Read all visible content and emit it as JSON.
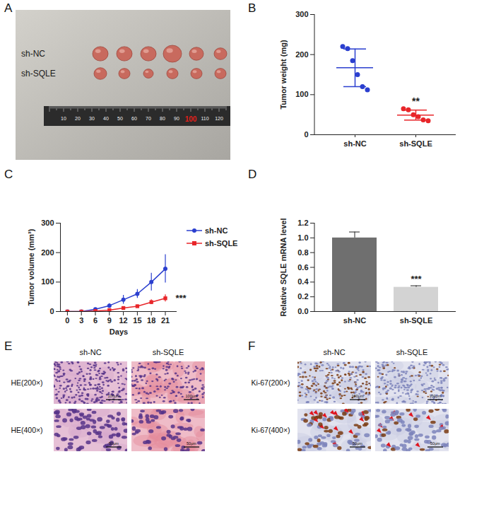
{
  "chart_data": [
    {
      "panel": "B",
      "type": "scatter",
      "categories": [
        "sh-NC",
        "sh-SQLE"
      ],
      "values": [
        [
          220,
          215,
          185,
          150,
          120,
          112
        ],
        [
          65,
          62,
          50,
          45,
          37,
          35
        ]
      ],
      "mean": [
        167,
        49
      ],
      "sd": [
        47,
        12.5
      ],
      "colors": [
        "#2b3fcf",
        "#e8262a"
      ],
      "ylabel": "Tumor weight (mg)",
      "ylim": [
        0,
        300
      ],
      "yticks": [
        0,
        100,
        200,
        300
      ],
      "annotations": [
        {
          "category": "sh-SQLE",
          "text": "**"
        }
      ]
    },
    {
      "panel": "C",
      "type": "line",
      "x": [
        0,
        3,
        6,
        9,
        12,
        15,
        18,
        21
      ],
      "series": [
        {
          "name": "sh-NC",
          "color": "#2b3fcf",
          "marker": "circle",
          "values": [
            0,
            0,
            8,
            20,
            40,
            60,
            100,
            145
          ],
          "errors": [
            0,
            0,
            3,
            7,
            15,
            15,
            30,
            48
          ]
        },
        {
          "name": "sh-SQLE",
          "color": "#e8262a",
          "marker": "square",
          "values": [
            0,
            0,
            2,
            5,
            12,
            18,
            32,
            45
          ],
          "errors": [
            0,
            0,
            1,
            2,
            4,
            5,
            8,
            12
          ]
        }
      ],
      "xlabel": "Days",
      "ylabel": "Tumor volume (mm³)",
      "xlim": [
        -1.5,
        23.5
      ],
      "xticks": [
        0,
        3,
        6,
        9,
        12,
        15,
        18,
        21
      ],
      "ylim": [
        0,
        300
      ],
      "yticks": [
        0,
        100,
        200,
        300
      ],
      "legend": "right",
      "annotations": [
        {
          "series": "sh-SQLE",
          "text": "***"
        }
      ]
    },
    {
      "panel": "D",
      "type": "bar",
      "categories": [
        "sh-NC",
        "sh-SQLE"
      ],
      "values": [
        1.0,
        0.33
      ],
      "errors": [
        0.08,
        0.02
      ],
      "colors": [
        "#6f6f6f",
        "#d3d3d3"
      ],
      "ylabel": "Relative SQLE mRNA level",
      "ylim": [
        0,
        1.2
      ],
      "yticks": [
        {
          "value": 0,
          "label": "0.0"
        },
        {
          "value": 0.2,
          "label": "0.2"
        },
        {
          "value": 0.4,
          "label": "0.4"
        },
        {
          "value": 0.6,
          "label": "0.6"
        },
        {
          "value": 0.8,
          "label": "0.8"
        },
        {
          "value": 1,
          "label": "1.0"
        },
        {
          "value": 1.2,
          "label": "1.2"
        }
      ],
      "annotations": [
        {
          "category": "sh-SQLE",
          "text": "***"
        }
      ]
    }
  ],
  "images": [
    {
      "panel": "A",
      "row_labels": [
        "sh-NC",
        "sh-SQLE"
      ],
      "ruler_labels": [
        "10",
        "20",
        "30",
        "40",
        "50",
        "60",
        "70",
        "80",
        "90",
        "100",
        "110",
        "120"
      ]
    },
    {
      "panel": "E",
      "columns": [
        "sh-NC",
        "sh-SQLE"
      ],
      "rows": [
        "HE(200×)",
        "HE(400×)"
      ],
      "scale_bars": [
        "100μm",
        "50μm"
      ]
    },
    {
      "panel": "F",
      "columns": [
        "sh-NC",
        "sh-SQLE"
      ],
      "rows": [
        "Ki-67(200×)",
        "Ki-67(400×)"
      ],
      "scale_bars": [
        "100μm",
        "50μm"
      ]
    }
  ]
}
